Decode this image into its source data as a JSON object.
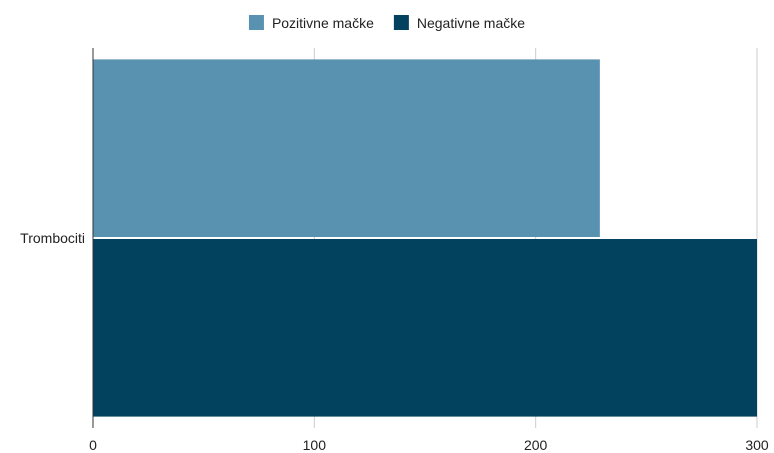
{
  "chart_data": {
    "type": "bar",
    "orientation": "horizontal",
    "categories": [
      "Trombociti"
    ],
    "series": [
      {
        "name": "Pozitivne mačke",
        "values": [
          229
        ],
        "color": "#5991b0"
      },
      {
        "name": "Negativne mačke",
        "values": [
          300
        ],
        "color": "#03425e"
      }
    ],
    "xlim": [
      0,
      300
    ],
    "xticks": [
      0,
      100,
      200,
      300
    ],
    "grid": true,
    "legend_position": "top-center",
    "title": "",
    "xlabel": "",
    "ylabel": ""
  }
}
